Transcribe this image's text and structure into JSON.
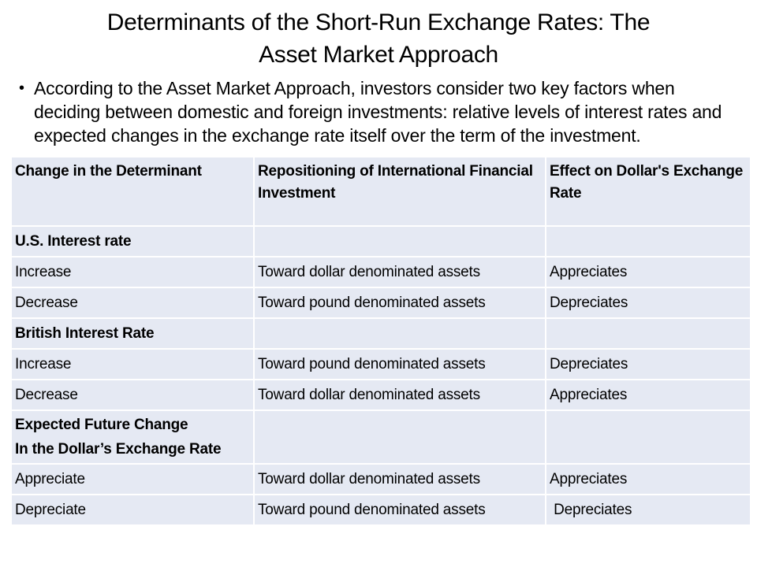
{
  "slide": {
    "title_line1": "Determinants of the Short-Run Exchange Rates: The",
    "title_line2": "Asset Market Approach",
    "bullet_glyph": "•",
    "bullet_text": "According to the Asset Market Approach, investors consider two key factors when deciding between domestic and foreign investments: relative levels of interest rates and expected changes in the exchange rate itself over the term of the investment."
  },
  "table": {
    "columns": [
      "Change in the Determinant",
      "Repositioning of International Financial Investment",
      "Effect on Dollar's Exchange Rate"
    ],
    "rows": [
      {
        "type": "section",
        "cells": [
          "U.S. Interest rate",
          "",
          ""
        ]
      },
      {
        "type": "data",
        "cells": [
          "Increase",
          "Toward dollar denominated assets",
          "Appreciates"
        ]
      },
      {
        "type": "data",
        "cells": [
          "Decrease",
          "Toward pound denominated assets",
          "Depreciates"
        ]
      },
      {
        "type": "section",
        "cells": [
          "British Interest Rate",
          "",
          ""
        ]
      },
      {
        "type": "data",
        "cells": [
          "Increase",
          "Toward pound denominated assets",
          "Depreciates"
        ]
      },
      {
        "type": "data",
        "cells": [
          "Decrease",
          "Toward dollar denominated assets",
          "Appreciates"
        ]
      },
      {
        "type": "section",
        "cells": [
          "Expected Future Change\nIn the Dollar’s Exchange Rate",
          "",
          ""
        ]
      },
      {
        "type": "data",
        "cells": [
          "Appreciate",
          "Toward dollar denominated assets",
          "Appreciates"
        ]
      },
      {
        "type": "data",
        "cells": [
          "Depreciate",
          "Toward pound denominated assets",
          " Depreciates"
        ]
      }
    ]
  },
  "colors": {
    "cell_fill": "#e5e9f3",
    "text": "#000000",
    "background": "#ffffff"
  }
}
